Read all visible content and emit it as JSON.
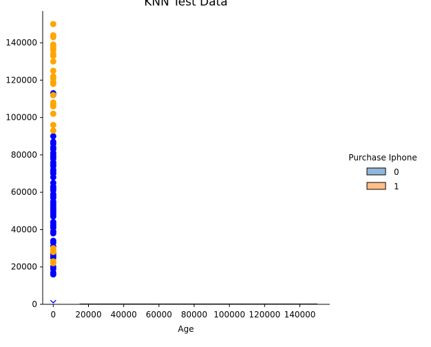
{
  "chart_data": {
    "type": "scatter",
    "title": "KNN Test Data",
    "xlabel": "Age",
    "ylabel": "",
    "xlim": [
      -6000,
      157000
    ],
    "ylim": [
      0,
      157000
    ],
    "xticks": [
      0,
      20000,
      40000,
      60000,
      80000,
      100000,
      120000,
      140000
    ],
    "yticks": [
      0,
      20000,
      40000,
      60000,
      80000,
      100000,
      120000,
      140000
    ],
    "xtick_labels": [
      "0",
      "20000",
      "40000",
      "60000",
      "80000",
      "100000",
      "120000",
      "140000"
    ],
    "ytick_labels": [
      "0",
      "20000",
      "40000",
      "60000",
      "80000",
      "100000",
      "120000",
      "140000"
    ],
    "grid": false,
    "legend": {
      "title": "Purchase Iphone",
      "placement": "right",
      "entries": [
        {
          "label": "0",
          "color": "#8fb7d9"
        },
        {
          "label": "1",
          "color": "#ffbf86"
        }
      ]
    },
    "series": [
      {
        "color": "#0000ff",
        "x": [
          0,
          0,
          0,
          0,
          0,
          0,
          0,
          0,
          0,
          0,
          0,
          0,
          0,
          0,
          0,
          0,
          0,
          0,
          0,
          0,
          0,
          0,
          0,
          0,
          0,
          0,
          0,
          0,
          0,
          0,
          0,
          0,
          0,
          0,
          0,
          0,
          0,
          0,
          0,
          0,
          0,
          0,
          0,
          0,
          0,
          0,
          0,
          0,
          0,
          0
        ],
        "y": [
          113000,
          112000,
          90000,
          87000,
          86000,
          84000,
          83000,
          81000,
          80000,
          79000,
          78000,
          76000,
          75000,
          74000,
          72000,
          71000,
          70000,
          68000,
          65000,
          63000,
          62000,
          61000,
          59000,
          58000,
          57000,
          55000,
          54000,
          53000,
          52000,
          51000,
          50000,
          49000,
          48000,
          47000,
          44000,
          43000,
          42000,
          41000,
          39000,
          38000,
          34000,
          33000,
          31000,
          27000,
          26000,
          25000,
          20000,
          19000,
          17000,
          16000
        ]
      },
      {
        "color": "#ffa500",
        "x": [
          0,
          0,
          0,
          0,
          0,
          0,
          0,
          0,
          0,
          0,
          0,
          0,
          0,
          0,
          0,
          0,
          0,
          0,
          0,
          0,
          0,
          0,
          0,
          0,
          0,
          0,
          0
        ],
        "y": [
          150000,
          144000,
          143000,
          139000,
          138000,
          137000,
          136000,
          134000,
          133000,
          130000,
          125000,
          122000,
          121000,
          119000,
          118000,
          112000,
          108000,
          107000,
          106000,
          102000,
          96000,
          93000,
          30000,
          29000,
          28000,
          23000,
          22000
        ]
      }
    ],
    "markers": [
      {
        "label": "x",
        "color": "#0000ff",
        "x": 0,
        "y": 0
      }
    ],
    "zero_segments": [
      {
        "x_start": 15000,
        "x_end": 150000,
        "y": 0
      }
    ]
  }
}
